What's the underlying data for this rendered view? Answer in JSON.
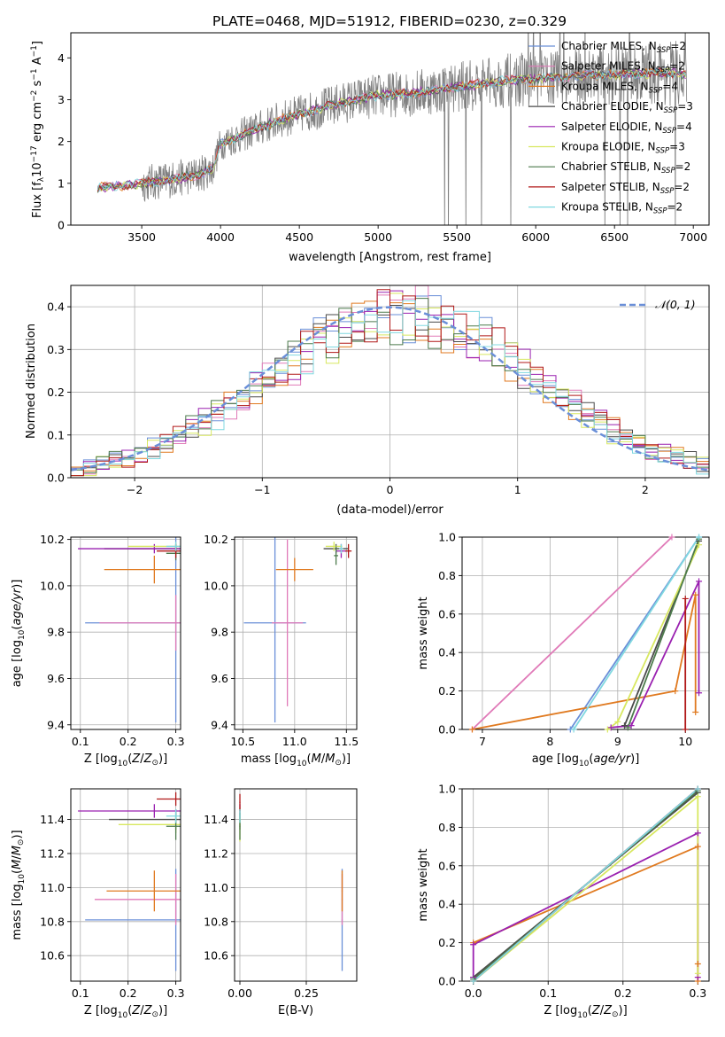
{
  "figure_title": "PLATE=0468, MJD=51912, FIBERID=0230, z=0.329",
  "colors": {
    "Chabrier MILES": "#6a8fd8",
    "Salpeter MILES": "#e07ab8",
    "Kroupa MILES": "#e07a20",
    "Chabrier ELODIE": "#4a4a4a",
    "Salpeter ELODIE": "#9a20b0",
    "Kroupa ELODIE": "#d8e860",
    "Chabrier STELIB": "#4c7a4c",
    "Salpeter STELIB": "#b01818",
    "Kroupa STELIB": "#80d8e0",
    "data": "#808080",
    "normal": "#6a8fd8"
  },
  "chart_data": [
    {
      "id": "spectrum",
      "type": "line",
      "xlabel": "wavelength [Angstrom, rest frame]",
      "ylabel": "Flux [f_λ 10^-17 erg cm^-2 s^-1 A^-1]",
      "xlim": [
        3050,
        7100
      ],
      "ylim": [
        0,
        4.6
      ],
      "xticks": [
        3500,
        4000,
        4500,
        5000,
        5500,
        6000,
        6500,
        7000
      ],
      "yticks": [
        0,
        1,
        2,
        3,
        4
      ],
      "grid": false,
      "legend_position": "top-right",
      "series": [
        {
          "name": "Chabrier MILES, N_SSP=2",
          "label_main": "Chabrier MILES, N",
          "label_sub": "SSP",
          "label_tail": "=2"
        },
        {
          "name": "Salpeter MILES, N_SSP=2",
          "label_main": "Salpeter MILES, N",
          "label_sub": "SSP",
          "label_tail": "=2"
        },
        {
          "name": "Kroupa MILES, N_SSP=4",
          "label_main": "Kroupa MILES, N",
          "label_sub": "SSP",
          "label_tail": "=4"
        },
        {
          "name": "Chabrier ELODIE, N_SSP=3",
          "label_main": "Chabrier ELODIE, N",
          "label_sub": "SSP",
          "label_tail": "=3"
        },
        {
          "name": "Salpeter ELODIE, N_SSP=4",
          "label_main": "Salpeter ELODIE, N",
          "label_sub": "SSP",
          "label_tail": "=4"
        },
        {
          "name": "Kroupa ELODIE, N_SSP=3",
          "label_main": "Kroupa ELODIE, N",
          "label_sub": "SSP",
          "label_tail": "=3"
        },
        {
          "name": "Chabrier STELIB, N_SSP=2",
          "label_main": "Chabrier STELIB, N",
          "label_sub": "SSP",
          "label_tail": "=2"
        },
        {
          "name": "Salpeter STELIB, N_SSP=2",
          "label_main": "Salpeter STELIB, N",
          "label_sub": "SSP",
          "label_tail": "=2"
        },
        {
          "name": "Kroupa STELIB, N_SSP=2",
          "label_main": "Kroupa STELIB, N",
          "label_sub": "SSP",
          "label_tail": "=2"
        }
      ],
      "continuum": {
        "x": [
          3220,
          3400,
          3500,
          3700,
          3850,
          3950,
          4000,
          4200,
          4400,
          4600,
          4800,
          5000,
          5200,
          5400,
          5600,
          5800,
          6000,
          6200,
          6400,
          6600,
          6800,
          6950
        ],
        "y": [
          0.9,
          0.95,
          1.0,
          1.1,
          1.2,
          1.35,
          1.95,
          2.25,
          2.55,
          2.75,
          2.95,
          3.1,
          3.15,
          3.25,
          3.35,
          3.45,
          3.5,
          3.55,
          3.6,
          3.6,
          3.65,
          3.6
        ]
      }
    },
    {
      "id": "residuals",
      "type": "histogram",
      "xlabel": "(data-model)/error",
      "ylabel": "Normed distribution",
      "xlim": [
        -2.5,
        2.5
      ],
      "ylim": [
        0,
        0.45
      ],
      "xticks": [
        -2,
        -1,
        0,
        1,
        2
      ],
      "xtick_labels": [
        "−2",
        "−1",
        "0",
        "1",
        "2"
      ],
      "yticks": [
        0,
        0.1,
        0.2,
        0.3,
        0.4
      ],
      "ytick_labels": [
        "0.0",
        "0.1",
        "0.2",
        "0.3",
        "0.4"
      ],
      "grid": true,
      "legend_position": "top-right",
      "normal_label": "𝒩(0, 1)",
      "bin_width": 0.1
    },
    {
      "id": "age-vs-Z",
      "type": "scatter",
      "xlabel": "Z [log10(Z/Z⊙)]",
      "ylabel": "age  [log10(age/yr)]",
      "xlim": [
        0.08,
        0.31
      ],
      "ylim": [
        9.38,
        10.21
      ],
      "xticks": [
        0.1,
        0.2,
        0.3
      ],
      "xtick_labels": [
        "0.1",
        "0.2",
        "0.3"
      ],
      "yticks": [
        9.4,
        9.6,
        9.8,
        10.0,
        10.2
      ],
      "ytick_labels": [
        "9.4",
        "9.6",
        "9.8",
        "10.0",
        "10.2"
      ],
      "grid": true,
      "points": [
        {
          "model": "Chabrier MILES",
          "x": 0.3,
          "y": 9.84,
          "xerr": 0.19,
          "yerr": 0.43
        },
        {
          "model": "Salpeter MILES",
          "x": 0.3,
          "y": 9.84,
          "xerr": 0.16,
          "yerr": 0.12
        },
        {
          "model": "Kroupa MILES",
          "x": 0.255,
          "y": 10.07,
          "xerr": 0.105,
          "yerr": 0.06
        },
        {
          "model": "Chabrier ELODIE",
          "x": 0.3,
          "y": 10.16,
          "xerr": 0.15,
          "yerr": 0.02
        },
        {
          "model": "Salpeter ELODIE",
          "x": 0.255,
          "y": 10.16,
          "xerr": 0.16,
          "yerr": 0.02
        },
        {
          "model": "Kroupa ELODIE",
          "x": 0.3,
          "y": 10.17,
          "xerr": 0.1,
          "yerr": 0.015
        },
        {
          "model": "Chabrier STELIB",
          "x": 0.3,
          "y": 10.14,
          "xerr": 0.02,
          "yerr": 0.03
        },
        {
          "model": "Salpeter STELIB",
          "x": 0.3,
          "y": 10.15,
          "xerr": 0.04,
          "yerr": 0.03
        },
        {
          "model": "Kroupa STELIB",
          "x": 0.3,
          "y": 10.17,
          "xerr": 0.02,
          "yerr": 0.02
        }
      ]
    },
    {
      "id": "age-vs-mass",
      "type": "scatter",
      "xlabel": "mass [log10(M/M⊙)]",
      "xlim": [
        10.42,
        11.6
      ],
      "ylim": [
        9.38,
        10.21
      ],
      "xticks": [
        10.5,
        11.0,
        11.5
      ],
      "xtick_labels": [
        "10.5",
        "11.0",
        "11.5"
      ],
      "yticks": [
        9.4,
        9.6,
        9.8,
        10.0,
        10.2
      ],
      "ytick_labels": [
        "9.4",
        "9.6",
        "9.8",
        "10.0",
        "10.2"
      ],
      "grid": true,
      "points": [
        {
          "model": "Chabrier MILES",
          "x": 10.81,
          "y": 9.84,
          "xerr": 0.3,
          "yerr": 0.43
        },
        {
          "model": "Salpeter MILES",
          "x": 10.93,
          "y": 9.84,
          "xerr": 0.15,
          "yerr": 0.36
        },
        {
          "model": "Kroupa MILES",
          "x": 11.0,
          "y": 10.07,
          "xerr": 0.18,
          "yerr": 0.05
        },
        {
          "model": "Chabrier ELODIE",
          "x": 11.4,
          "y": 10.16,
          "xerr": 0.12,
          "yerr": 0.02
        },
        {
          "model": "Salpeter ELODIE",
          "x": 11.45,
          "y": 10.15,
          "xerr": 0.05,
          "yerr": 0.03
        },
        {
          "model": "Kroupa ELODIE",
          "x": 11.38,
          "y": 10.17,
          "xerr": 0.08,
          "yerr": 0.02
        },
        {
          "model": "Chabrier STELIB",
          "x": 11.4,
          "y": 10.13,
          "xerr": 0.02,
          "yerr": 0.04
        },
        {
          "model": "Salpeter STELIB",
          "x": 11.52,
          "y": 10.15,
          "xerr": 0.03,
          "yerr": 0.03
        },
        {
          "model": "Kroupa STELIB",
          "x": 11.45,
          "y": 10.16,
          "xerr": 0.02,
          "yerr": 0.02
        }
      ]
    },
    {
      "id": "weight-vs-age",
      "type": "line",
      "xlabel": "age  [log10(age/yr)]",
      "ylabel": "mass weight",
      "xlim": [
        6.7,
        10.35
      ],
      "ylim": [
        0,
        1.0
      ],
      "xticks": [
        7,
        8,
        9,
        10
      ],
      "xtick_labels": [
        "7",
        "8",
        "9",
        "10"
      ],
      "yticks": [
        0,
        0.2,
        0.4,
        0.6,
        0.8,
        1.0
      ],
      "ytick_labels": [
        "0.0",
        "0.2",
        "0.4",
        "0.6",
        "0.8",
        "1.0"
      ],
      "grid": true,
      "series": [
        {
          "model": "Chabrier MILES",
          "x": [
            8.3,
            10.2
          ],
          "y": [
            0.0,
            1.0
          ]
        },
        {
          "model": "Salpeter MILES",
          "x": [
            6.85,
            9.8
          ],
          "y": [
            0.0,
            1.0
          ]
        },
        {
          "model": "Kroupa MILES",
          "x": [
            6.85,
            9.85,
            10.15,
            10.15
          ],
          "y": [
            0.0,
            0.2,
            0.7,
            0.09
          ]
        },
        {
          "model": "Chabrier ELODIE",
          "x": [
            9.1,
            10.2
          ],
          "y": [
            0.02,
            0.98
          ]
        },
        {
          "model": "Salpeter ELODIE",
          "x": [
            8.9,
            9.2,
            10.2,
            10.2
          ],
          "y": [
            0.01,
            0.02,
            0.77,
            0.19
          ]
        },
        {
          "model": "Kroupa ELODIE",
          "x": [
            8.85,
            9.0,
            10.2
          ],
          "y": [
            0.0,
            0.04,
            0.96
          ]
        },
        {
          "model": "Chabrier STELIB",
          "x": [
            9.15,
            10.2
          ],
          "y": [
            0.01,
            0.99
          ]
        },
        {
          "model": "Salpeter STELIB",
          "x": [
            10.0,
            10.0
          ],
          "y": [
            0.0,
            0.68
          ]
        },
        {
          "model": "Kroupa STELIB",
          "x": [
            8.35,
            10.2
          ],
          "y": [
            0.0,
            1.0
          ]
        }
      ]
    },
    {
      "id": "mass-vs-Z",
      "type": "scatter",
      "xlabel": "Z [log10(Z/Z⊙)]",
      "ylabel": "mass [log10(M/M⊙)]",
      "xlim": [
        0.08,
        0.31
      ],
      "ylim": [
        10.45,
        11.58
      ],
      "xticks": [
        0.1,
        0.2,
        0.3
      ],
      "xtick_labels": [
        "0.1",
        "0.2",
        "0.3"
      ],
      "yticks": [
        10.6,
        10.8,
        11.0,
        11.2,
        11.4
      ],
      "ytick_labels": [
        "10.6",
        "10.8",
        "11.0",
        "11.2",
        "11.4"
      ],
      "grid": true,
      "points": [
        {
          "model": "Chabrier MILES",
          "x": 0.3,
          "y": 10.81,
          "xerr": 0.19,
          "yerr": 0.3
        },
        {
          "model": "Salpeter MILES",
          "x": 0.3,
          "y": 10.93,
          "xerr": 0.17,
          "yerr": 0.15
        },
        {
          "model": "Kroupa MILES",
          "x": 0.255,
          "y": 10.98,
          "xerr": 0.1,
          "yerr": 0.12
        },
        {
          "model": "Chabrier ELODIE",
          "x": 0.3,
          "y": 11.4,
          "xerr": 0.14,
          "yerr": 0.06
        },
        {
          "model": "Salpeter ELODIE",
          "x": 0.255,
          "y": 11.45,
          "xerr": 0.16,
          "yerr": 0.04
        },
        {
          "model": "Kroupa ELODIE",
          "x": 0.3,
          "y": 11.37,
          "xerr": 0.12,
          "yerr": 0.05
        },
        {
          "model": "Chabrier STELIB",
          "x": 0.3,
          "y": 11.36,
          "xerr": 0.02,
          "yerr": 0.08
        },
        {
          "model": "Salpeter STELIB",
          "x": 0.3,
          "y": 11.52,
          "xerr": 0.04,
          "yerr": 0.04
        },
        {
          "model": "Kroupa STELIB",
          "x": 0.3,
          "y": 11.42,
          "xerr": 0.02,
          "yerr": 0.04
        }
      ]
    },
    {
      "id": "mass-vs-EBV",
      "type": "scatter",
      "xlabel": "E(B-V)",
      "xlim": [
        -0.02,
        0.44
      ],
      "ylim": [
        10.45,
        11.58
      ],
      "xticks": [
        0.0,
        0.25
      ],
      "xtick_labels": [
        "0.00",
        "0.25"
      ],
      "yticks": [
        10.6,
        10.8,
        11.0,
        11.2,
        11.4
      ],
      "ytick_labels": [
        "10.6",
        "10.8",
        "11.0",
        "11.2",
        "11.4"
      ],
      "grid": true,
      "points": [
        {
          "model": "Chabrier MILES",
          "x": 0.385,
          "y": 10.81,
          "xerr": 0.002,
          "yerr": 0.3
        },
        {
          "model": "Salpeter MILES",
          "x": 0.385,
          "y": 10.93,
          "xerr": 0.002,
          "yerr": 0.15
        },
        {
          "model": "Kroupa MILES",
          "x": 0.385,
          "y": 10.98,
          "xerr": 0.002,
          "yerr": 0.12
        },
        {
          "model": "Chabrier ELODIE",
          "x": 0.0,
          "y": 11.4,
          "xerr": 0.002,
          "yerr": 0.06
        },
        {
          "model": "Salpeter ELODIE",
          "x": 0.0,
          "y": 11.45,
          "xerr": 0.002,
          "yerr": 0.04
        },
        {
          "model": "Kroupa ELODIE",
          "x": 0.0,
          "y": 11.37,
          "xerr": 0.002,
          "yerr": 0.1
        },
        {
          "model": "Chabrier STELIB",
          "x": 0.0,
          "y": 11.36,
          "xerr": 0.002,
          "yerr": 0.08
        },
        {
          "model": "Salpeter STELIB",
          "x": 0.0,
          "y": 11.5,
          "xerr": 0.002,
          "yerr": 0.05
        },
        {
          "model": "Kroupa STELIB",
          "x": 0.0,
          "y": 11.42,
          "xerr": 0.002,
          "yerr": 0.04
        }
      ]
    },
    {
      "id": "weight-vs-Z",
      "type": "line",
      "xlabel": "Z [log10(Z/Z⊙)]",
      "ylabel": "mass weight",
      "xlim": [
        -0.015,
        0.315
      ],
      "ylim": [
        0,
        1.0
      ],
      "xticks": [
        0.0,
        0.1,
        0.2,
        0.3
      ],
      "xtick_labels": [
        "0.0",
        "0.1",
        "0.2",
        "0.3"
      ],
      "yticks": [
        0,
        0.2,
        0.4,
        0.6,
        0.8,
        1.0
      ],
      "ytick_labels": [
        "0.0",
        "0.2",
        "0.4",
        "0.6",
        "0.8",
        "1.0"
      ],
      "grid": true,
      "series": [
        {
          "model": "Chabrier MILES",
          "x": [
            0.0,
            0.3
          ],
          "y": [
            0.0,
            1.0
          ]
        },
        {
          "model": "Salpeter MILES",
          "x": [
            0.0,
            0.3
          ],
          "y": [
            0.0,
            1.0
          ]
        },
        {
          "model": "Kroupa MILES",
          "x": [
            0.0,
            0.3,
            0.3,
            0.3
          ],
          "y": [
            0.2,
            0.7,
            0.09,
            0.0
          ]
        },
        {
          "model": "Chabrier ELODIE",
          "x": [
            0.0,
            0.3
          ],
          "y": [
            0.02,
            0.98
          ]
        },
        {
          "model": "Salpeter ELODIE",
          "x": [
            0.0,
            0.0,
            0.3,
            0.3
          ],
          "y": [
            0.02,
            0.19,
            0.77,
            0.02
          ]
        },
        {
          "model": "Kroupa ELODIE",
          "x": [
            0.0,
            0.3,
            0.3
          ],
          "y": [
            0.0,
            0.96,
            0.04
          ]
        },
        {
          "model": "Chabrier STELIB",
          "x": [
            0.0,
            0.3
          ],
          "y": [
            0.01,
            0.99
          ]
        },
        {
          "model": "Salpeter STELIB",
          "x": [
            0.0,
            0.3
          ],
          "y": [
            0.0,
            1.0
          ]
        },
        {
          "model": "Kroupa STELIB",
          "x": [
            0.0,
            0.3
          ],
          "y": [
            0.0,
            1.0
          ]
        }
      ]
    }
  ]
}
